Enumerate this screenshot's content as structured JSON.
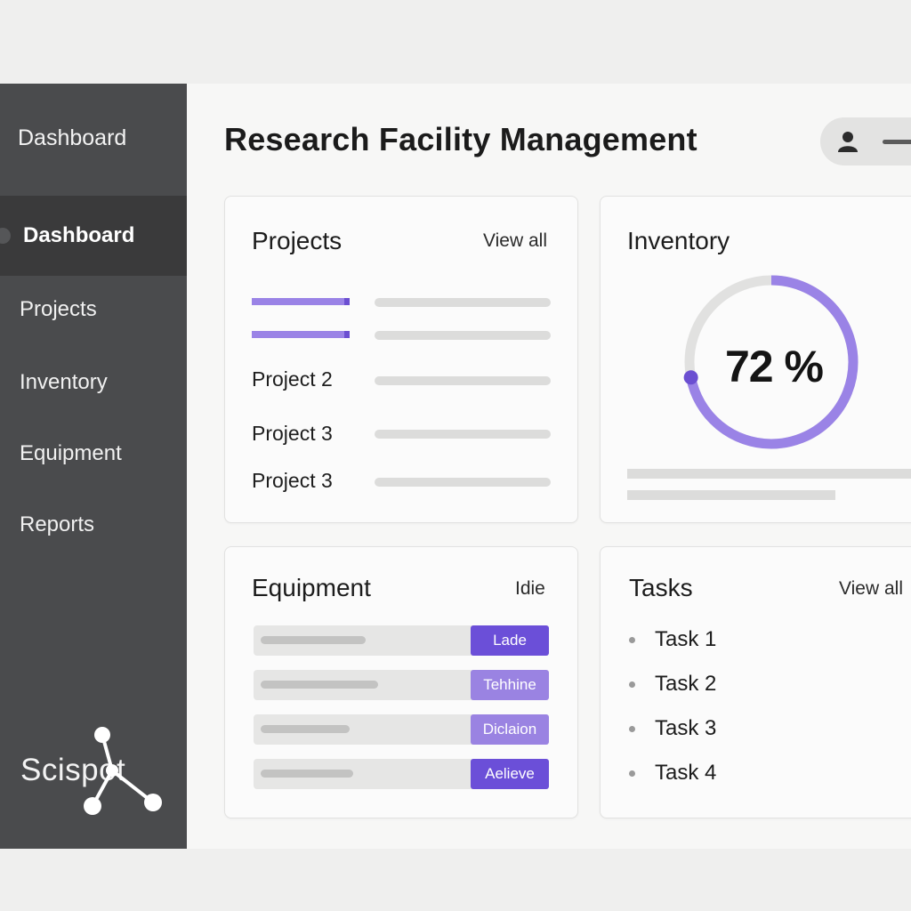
{
  "sidebar": {
    "header": "Dashboard",
    "items": [
      {
        "label": "Dashboard",
        "active": true
      },
      {
        "label": "Projects",
        "active": false
      },
      {
        "label": "Inventory",
        "active": false
      },
      {
        "label": "Equipment",
        "active": false
      },
      {
        "label": "Reports",
        "active": false
      }
    ],
    "logo_text": "Scispot"
  },
  "header": {
    "title": "Research Facility Management",
    "user_icon": "user-icon"
  },
  "projects": {
    "title": "Projects",
    "link": "View all",
    "rows": [
      "Project 2",
      "Project 3",
      "Project 3"
    ]
  },
  "inventory": {
    "title": "Inventory",
    "percent_label": "72 %",
    "percent": 0.72
  },
  "equipment": {
    "title": "Equipment",
    "status": "Idie",
    "rows": [
      {
        "button": "Lade",
        "color": "#6b4fd8"
      },
      {
        "button": "Tehhine",
        "color": "#9a83e2"
      },
      {
        "button": "Diclaion",
        "color": "#9a83e2"
      },
      {
        "button": "Aelieve",
        "color": "#6b4fd8"
      }
    ]
  },
  "tasks": {
    "title": "Tasks",
    "link": "View all",
    "items": [
      "Task 1",
      "Task 2",
      "Task 3",
      "Task 4"
    ]
  },
  "colors": {
    "accent": "#9a83e6",
    "accent_dark": "#6b4fd1",
    "sidebar": "#4a4b4d"
  }
}
